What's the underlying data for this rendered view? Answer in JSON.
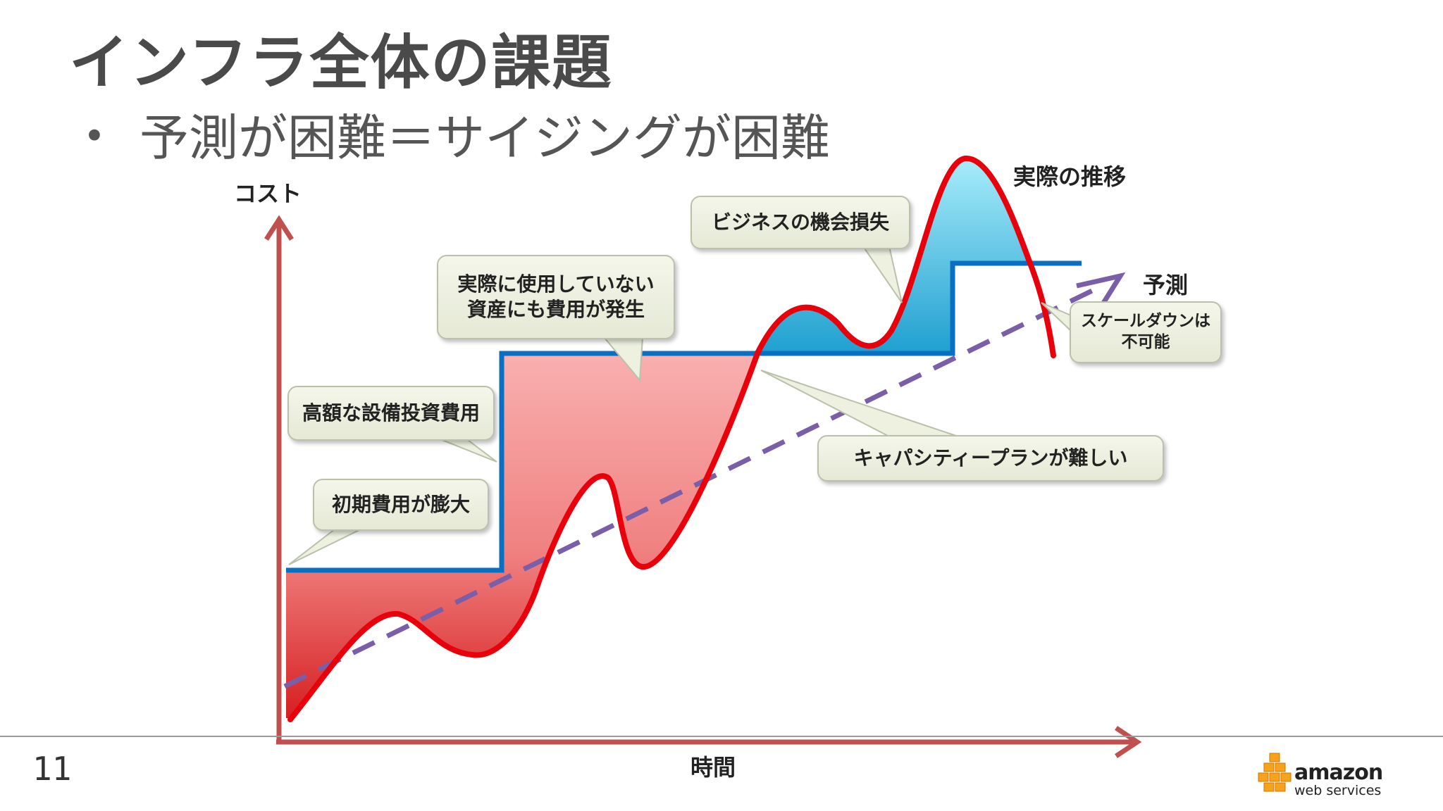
{
  "slide": {
    "title": "インフラ全体の課題",
    "bullet": "予測が困難＝サイジングが困難",
    "page_number": "11"
  },
  "axes": {
    "y_label": "コスト",
    "x_label": "時間"
  },
  "labels": {
    "actual_trend": "実際の推移",
    "forecast": "予測"
  },
  "callouts": {
    "initial_cost": "初期費用が膨大",
    "capex": "高額な設備投資費用",
    "unused_assets_line1": "実際に使用していない",
    "unused_assets_line2": "資産にも費用が発生",
    "opportunity_loss": "ビジネスの機会損失",
    "capacity_planning": "キャパシティープランが難しい",
    "scale_down_line1": "スケールダウンは",
    "scale_down_line2": "不可能"
  },
  "logo": {
    "brand": "amazon",
    "sub": "web services"
  },
  "colors": {
    "axis": "#c0504d",
    "actual_line": "#e8000b",
    "capacity_line": "#0b6fc1",
    "forecast_line": "#7a5ea8",
    "over_capacity_fill": "#f5a0a0",
    "under_capacity_fill": "#6fd0ea",
    "logo_orange": "#f7a21b"
  }
}
